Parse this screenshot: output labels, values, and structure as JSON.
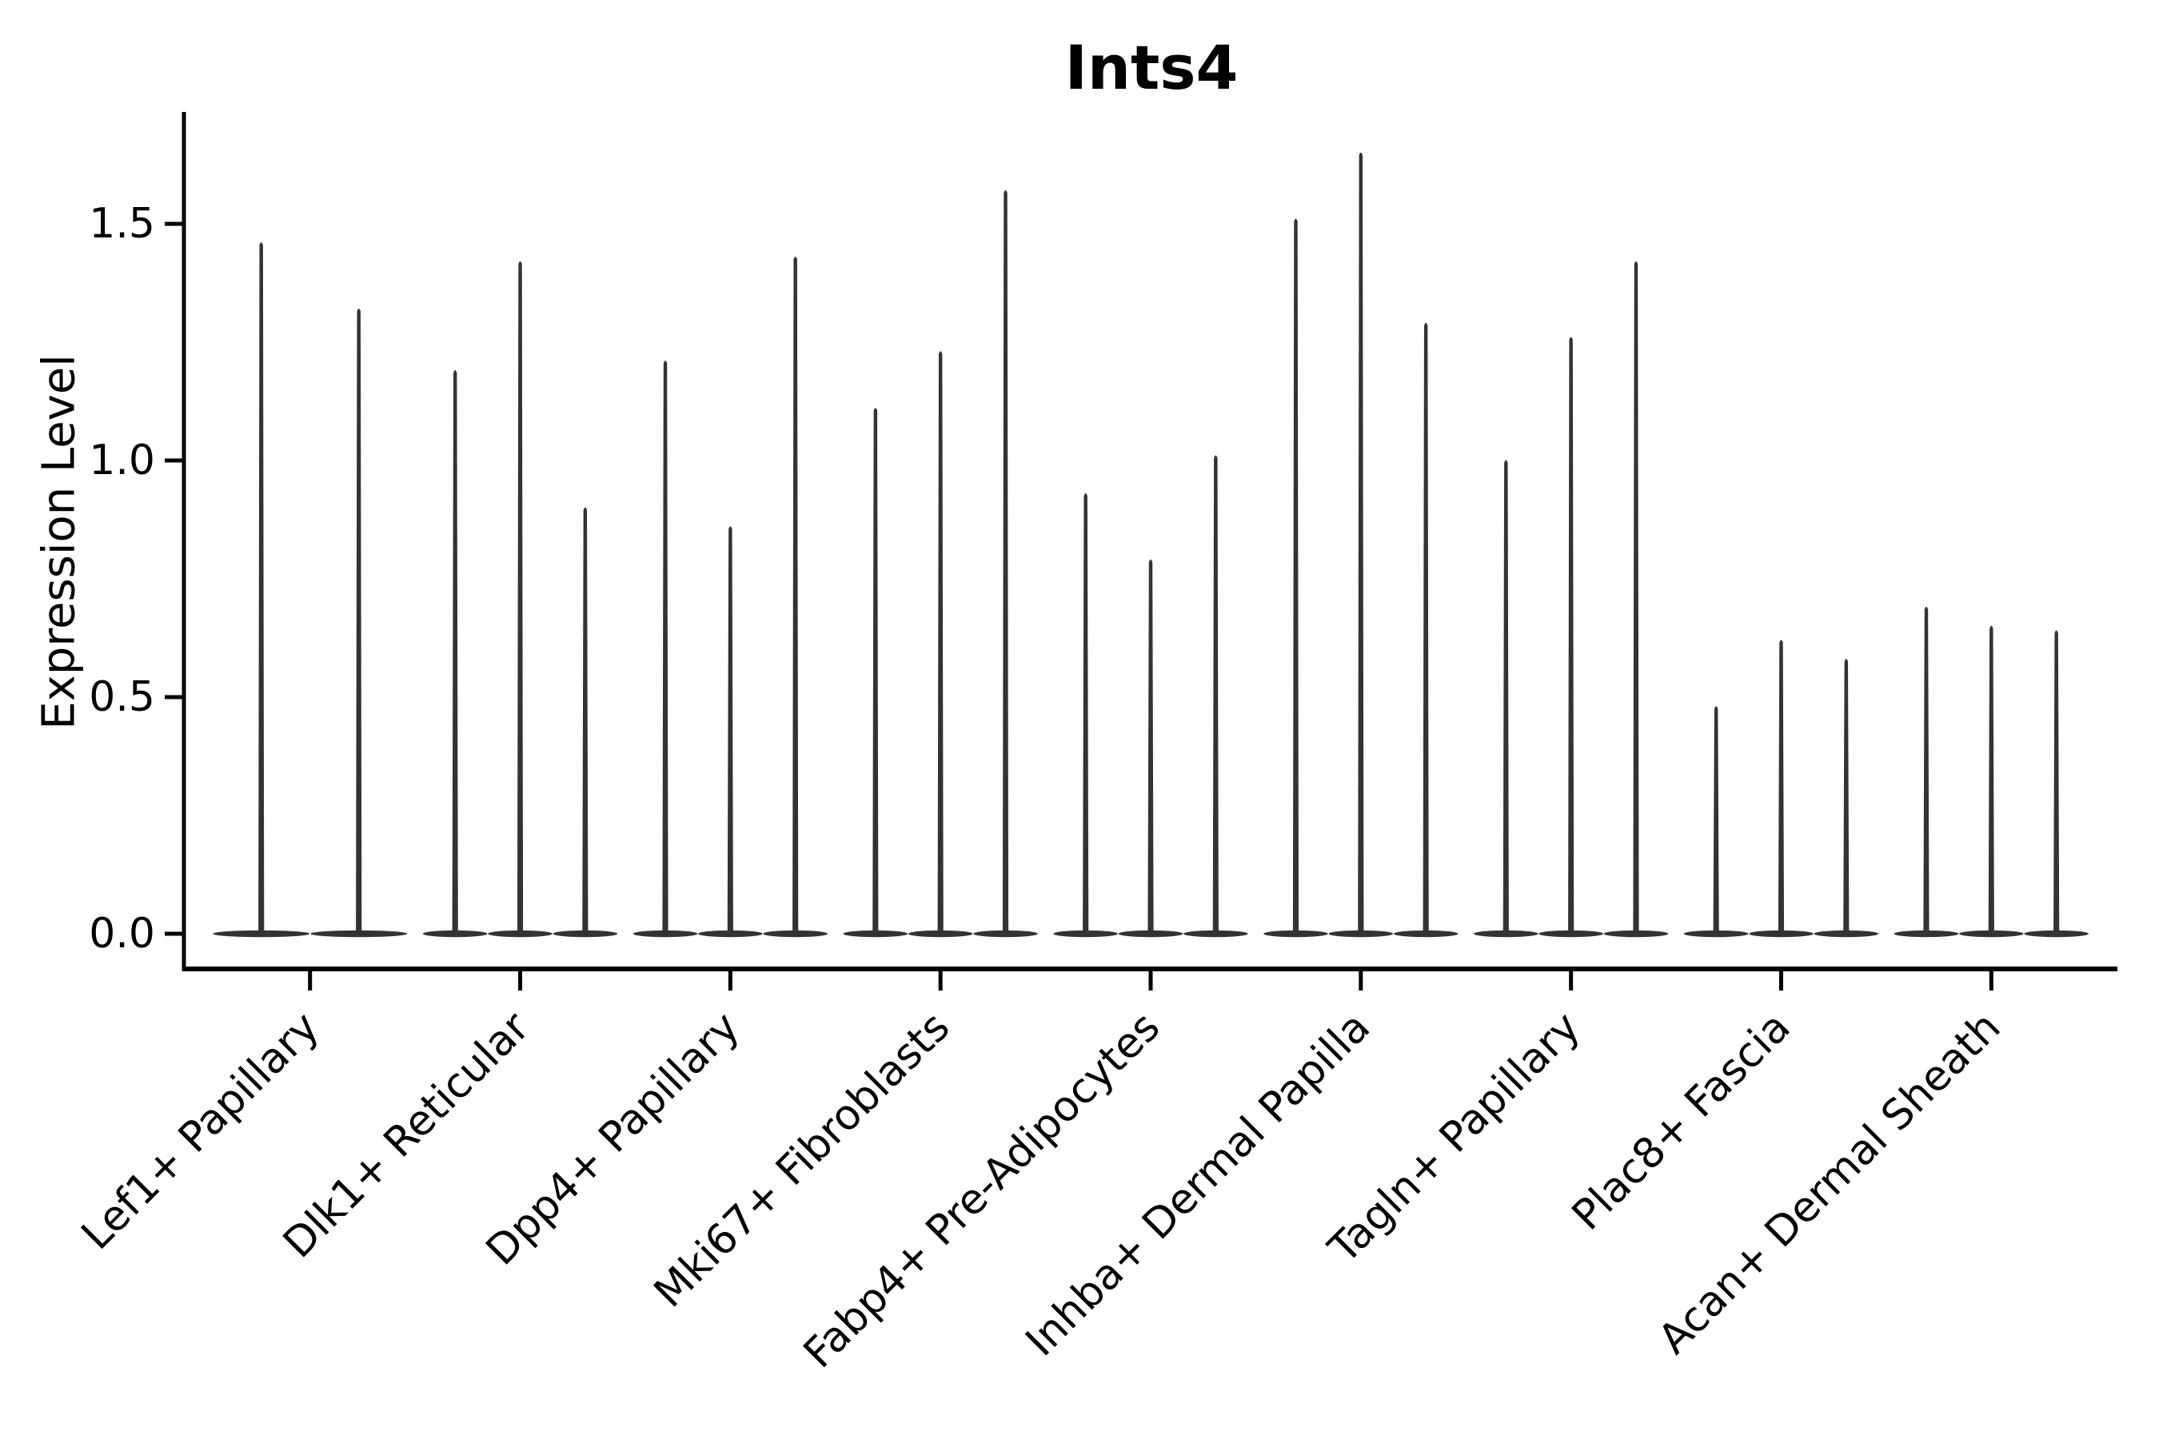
{
  "title": "Ints4",
  "chart_data": {
    "type": "violin",
    "title": "Ints4",
    "xlabel": "",
    "ylabel": "Expression Level",
    "yticks": [
      0.0,
      0.5,
      1.0,
      1.5
    ],
    "ytick_labels": [
      "0.0",
      "0.5",
      "1.0",
      "1.5"
    ],
    "ylim": [
      -0.07,
      1.74
    ],
    "grid": false,
    "legend_position": "none",
    "categories": [
      "Lef1+ Papillary",
      "Dlk1+ Reticular",
      "Dpp4+ Papillary",
      "Mki67+ Fibroblasts",
      "Fabp4+ Pre-Adipocytes",
      "Inhba+ Dermal Papilla",
      "Tagln+ Papillary",
      "Plac8+ Fascia",
      "Acan+ Dermal Sheath"
    ],
    "groups": [
      {
        "category": "Lef1+ Papillary",
        "violin_maxima": [
          1.46,
          1.32
        ]
      },
      {
        "category": "Dlk1+ Reticular",
        "violin_maxima": [
          1.19,
          1.42,
          0.9
        ]
      },
      {
        "category": "Dpp4+ Papillary",
        "violin_maxima": [
          1.21,
          0.86,
          1.43
        ]
      },
      {
        "category": "Mki67+ Fibroblasts",
        "violin_maxima": [
          1.11,
          1.23,
          1.57
        ]
      },
      {
        "category": "Fabp4+ Pre-Adipocytes",
        "violin_maxima": [
          0.93,
          0.79,
          1.01
        ]
      },
      {
        "category": "Inhba+ Dermal Papilla",
        "violin_maxima": [
          1.51,
          1.65,
          1.29
        ]
      },
      {
        "category": "Tagln+ Papillary",
        "violin_maxima": [
          1.0,
          1.26,
          1.42
        ]
      },
      {
        "category": "Plac8+ Fascia",
        "violin_maxima": [
          0.48,
          0.62,
          0.58
        ]
      },
      {
        "category": "Acan+ Dermal Sheath",
        "violin_maxima": [
          0.69,
          0.65,
          0.64
        ]
      }
    ],
    "violin_baseline_value": 0.0,
    "colors": {
      "violin": "#333333",
      "axis": "#000000",
      "tick_label": "#000000",
      "title": "#000000",
      "background": "#ffffff"
    }
  }
}
